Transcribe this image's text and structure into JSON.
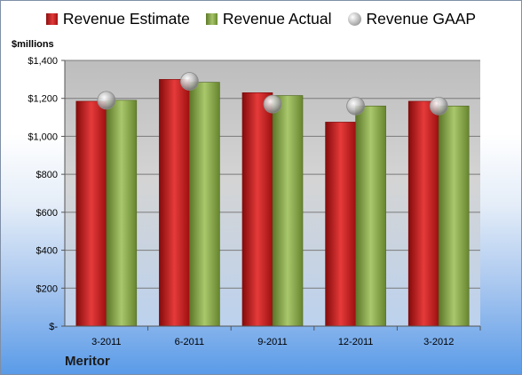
{
  "chart_data": {
    "type": "bar",
    "title": "",
    "xlabel": "",
    "ylabel": "$millions",
    "ylim": [
      0,
      1400
    ],
    "ytick_values": [
      0,
      200,
      400,
      600,
      800,
      1000,
      1200,
      1400
    ],
    "ytick_labels": [
      "$-",
      "$200",
      "$400",
      "$600",
      "$800",
      "$1,000",
      "$1,200",
      "$1,400"
    ],
    "categories": [
      "3-2011",
      "6-2011",
      "9-2011",
      "12-2011",
      "3-2012"
    ],
    "series": [
      {
        "name": "Revenue Estimate",
        "kind": "bar",
        "color": "#c8191a",
        "values": [
          1185,
          1300,
          1230,
          1075,
          1185
        ]
      },
      {
        "name": "Revenue Actual",
        "kind": "bar",
        "color": "#8fb05a",
        "values": [
          1190,
          1285,
          1215,
          1160,
          1160
        ]
      },
      {
        "name": "Revenue GAAP",
        "kind": "marker",
        "color": "#b0b0b0",
        "values": [
          1190,
          1290,
          1170,
          1160,
          1160
        ]
      }
    ],
    "grid": true,
    "legend_position": "top"
  },
  "footer": {
    "company": "Meritor"
  }
}
